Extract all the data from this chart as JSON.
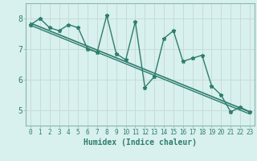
{
  "x": [
    0,
    1,
    2,
    3,
    4,
    5,
    6,
    7,
    8,
    9,
    10,
    11,
    12,
    13,
    14,
    15,
    16,
    17,
    18,
    19,
    20,
    21,
    22,
    23
  ],
  "y": [
    7.8,
    8.0,
    7.7,
    7.6,
    7.8,
    7.7,
    7.0,
    6.9,
    8.1,
    6.85,
    6.65,
    7.9,
    5.75,
    6.1,
    7.35,
    7.6,
    6.6,
    6.7,
    6.8,
    5.8,
    5.5,
    4.95,
    5.1,
    4.95
  ],
  "trend_y_start": 7.85,
  "trend_y_end": 4.95,
  "trend_y2_start": 7.78,
  "trend_y2_end": 4.88,
  "line_color": "#2e7d6e",
  "bg_color": "#d8f0ee",
  "grid_color": "#c8dcd8",
  "spine_color": "#8ab8b0",
  "xlabel": "Humidex (Indice chaleur)",
  "ylim": [
    4.5,
    8.5
  ],
  "xlim": [
    -0.5,
    23.5
  ],
  "yticks": [
    5,
    6,
    7,
    8
  ],
  "xticks": [
    0,
    1,
    2,
    3,
    4,
    5,
    6,
    7,
    8,
    9,
    10,
    11,
    12,
    13,
    14,
    15,
    16,
    17,
    18,
    19,
    20,
    21,
    22,
    23
  ]
}
